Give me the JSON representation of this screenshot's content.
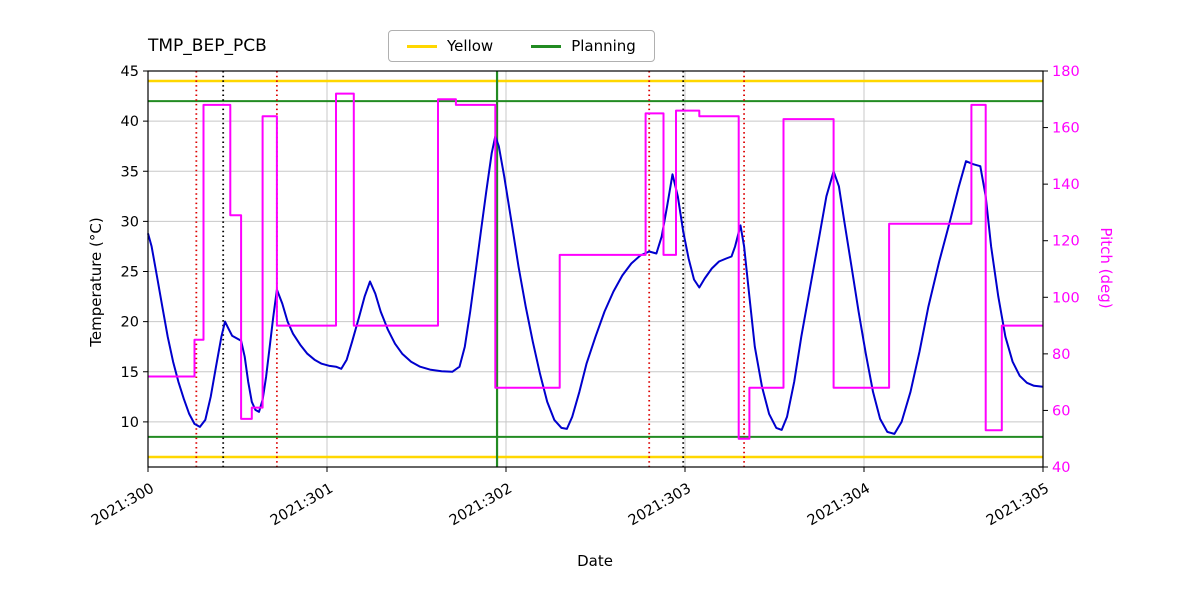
{
  "chart_data": {
    "type": "line",
    "title": "TMP_BEP_PCB",
    "xlabel": "Date",
    "ylabel_left": "Temperature (°C)",
    "ylabel_right": "Pitch (deg)",
    "xlim": [
      300,
      305
    ],
    "ylim_left": [
      5.5,
      45
    ],
    "ylim_right": [
      40,
      180
    ],
    "grid": true,
    "x_ticks": [
      {
        "v": 300,
        "label": "2021:300"
      },
      {
        "v": 301,
        "label": "2021:301"
      },
      {
        "v": 302,
        "label": "2021:302"
      },
      {
        "v": 303,
        "label": "2021:303"
      },
      {
        "v": 304,
        "label": "2021:304"
      },
      {
        "v": 305,
        "label": "2021:305"
      }
    ],
    "y_ticks_left": [
      10,
      15,
      20,
      25,
      30,
      35,
      40,
      45
    ],
    "y_ticks_right": [
      40,
      60,
      80,
      100,
      120,
      140,
      160,
      180
    ],
    "legend": [
      {
        "label": "Yellow",
        "color": "#ffd700"
      },
      {
        "label": "Planning",
        "color": "#228b22"
      }
    ],
    "colors": {
      "temperature": "#0000cd",
      "pitch": "#ff00ff",
      "yellow_limit": "#ffd700",
      "planning_limit": "#228b22",
      "red_marker": "#dd0000",
      "black_marker": "#000000",
      "grid": "#c8c8c8",
      "spine": "#000000"
    },
    "hlines": {
      "yellow": [
        44,
        6.5
      ],
      "planning": [
        42,
        8.5
      ]
    },
    "vlines": {
      "red_dotted": [
        300.27,
        300.72,
        302.8,
        303.33
      ],
      "black_dotted": [
        300.42,
        302.99
      ],
      "green_solid": [
        301.95
      ]
    },
    "series": [
      {
        "name": "Temperature",
        "axis": "left",
        "color": "#0000cd",
        "x": [
          300.0,
          300.02,
          300.05,
          300.08,
          300.11,
          300.14,
          300.17,
          300.2,
          300.23,
          300.26,
          300.29,
          300.32,
          300.35,
          300.38,
          300.41,
          300.43,
          300.45,
          300.47,
          300.5,
          300.52,
          300.54,
          300.56,
          300.58,
          300.6,
          300.62,
          300.64,
          300.66,
          300.68,
          300.7,
          300.72,
          300.75,
          300.78,
          300.81,
          300.85,
          300.89,
          300.93,
          300.97,
          301.01,
          301.05,
          301.08,
          301.11,
          301.14,
          301.18,
          301.21,
          301.24,
          301.27,
          301.3,
          301.34,
          301.38,
          301.42,
          301.47,
          301.52,
          301.58,
          301.64,
          301.7,
          301.74,
          301.77,
          301.8,
          301.83,
          301.86,
          301.89,
          301.92,
          301.94,
          301.96,
          301.99,
          302.03,
          302.07,
          302.11,
          302.15,
          302.19,
          302.23,
          302.27,
          302.31,
          302.34,
          302.37,
          302.41,
          302.45,
          302.5,
          302.55,
          302.6,
          302.65,
          302.7,
          302.75,
          302.8,
          302.84,
          302.87,
          302.9,
          302.93,
          302.96,
          302.99,
          303.02,
          303.05,
          303.08,
          303.11,
          303.15,
          303.19,
          303.23,
          303.26,
          303.28,
          303.31,
          303.33,
          303.36,
          303.39,
          303.43,
          303.47,
          303.51,
          303.54,
          303.57,
          303.61,
          303.65,
          303.7,
          303.75,
          303.79,
          303.83,
          303.86,
          303.89,
          303.93,
          303.97,
          304.01,
          304.05,
          304.09,
          304.13,
          304.17,
          304.21,
          304.26,
          304.31,
          304.36,
          304.42,
          304.48,
          304.53,
          304.57,
          304.61,
          304.65,
          304.68,
          304.71,
          304.75,
          304.79,
          304.83,
          304.87,
          304.91,
          304.95,
          305.0
        ],
        "y": [
          28.8,
          27.5,
          24.5,
          21.5,
          18.5,
          16.0,
          14.0,
          12.3,
          10.8,
          9.8,
          9.5,
          10.2,
          12.5,
          15.5,
          18.5,
          20.0,
          19.3,
          18.6,
          18.3,
          18.1,
          16.5,
          14.0,
          12.0,
          11.2,
          11.0,
          12.2,
          14.5,
          17.5,
          20.5,
          23.2,
          21.8,
          20.0,
          18.8,
          17.7,
          16.8,
          16.2,
          15.8,
          15.6,
          15.5,
          15.3,
          16.2,
          18.0,
          20.5,
          22.5,
          24.0,
          22.8,
          21.0,
          19.2,
          17.8,
          16.8,
          16.0,
          15.5,
          15.2,
          15.05,
          15.0,
          15.5,
          17.5,
          21.0,
          25.0,
          29.0,
          33.0,
          36.8,
          38.5,
          37.5,
          34.5,
          30.0,
          25.5,
          21.5,
          18.0,
          14.8,
          12.0,
          10.2,
          9.4,
          9.3,
          10.5,
          13.0,
          15.8,
          18.5,
          21.0,
          23.0,
          24.6,
          25.8,
          26.6,
          27.0,
          26.8,
          28.5,
          31.5,
          34.7,
          32.5,
          29.0,
          26.3,
          24.2,
          23.4,
          24.3,
          25.3,
          26.0,
          26.3,
          26.5,
          27.5,
          29.6,
          27.5,
          22.5,
          17.5,
          13.5,
          10.8,
          9.4,
          9.2,
          10.5,
          14.0,
          18.5,
          23.5,
          28.5,
          32.5,
          35.0,
          33.5,
          30.0,
          25.5,
          21.0,
          16.8,
          13.0,
          10.3,
          9.0,
          8.8,
          10.0,
          13.0,
          17.0,
          21.5,
          26.0,
          30.0,
          33.5,
          36.0,
          35.7,
          35.5,
          32.5,
          27.5,
          22.5,
          18.5,
          16.0,
          14.6,
          13.9,
          13.6,
          13.5
        ]
      },
      {
        "name": "Pitch",
        "axis": "right",
        "color": "#ff00ff",
        "x": [
          300.0,
          300.26,
          300.26,
          300.31,
          300.31,
          300.46,
          300.46,
          300.52,
          300.52,
          300.58,
          300.58,
          300.64,
          300.64,
          300.72,
          300.72,
          301.05,
          301.05,
          301.15,
          301.15,
          301.62,
          301.62,
          301.72,
          301.72,
          301.94,
          301.94,
          302.3,
          302.3,
          302.78,
          302.78,
          302.88,
          302.88,
          302.95,
          302.95,
          303.08,
          303.08,
          303.3,
          303.3,
          303.36,
          303.36,
          303.55,
          303.55,
          303.83,
          303.83,
          304.14,
          304.14,
          304.6,
          304.6,
          304.68,
          304.68,
          304.77,
          304.77,
          305.0
        ],
        "y": [
          72,
          72,
          85,
          85,
          168,
          168,
          129,
          129,
          57,
          57,
          61,
          61,
          164,
          164,
          90,
          90,
          172,
          172,
          90,
          90,
          170,
          170,
          168,
          168,
          68,
          68,
          115,
          115,
          165,
          165,
          115,
          115,
          166,
          166,
          164,
          164,
          50,
          50,
          68,
          68,
          163,
          163,
          68,
          68,
          126,
          126,
          168,
          168,
          53,
          53,
          90,
          90
        ]
      }
    ]
  }
}
